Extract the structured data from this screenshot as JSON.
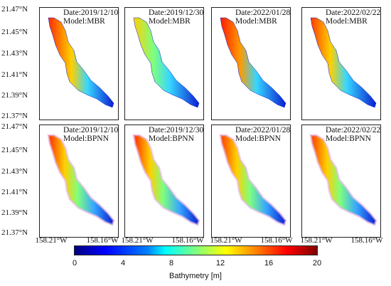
{
  "figure": {
    "y_ticks": [
      "21.47°N",
      "21.45°N",
      "21.43°N",
      "21.41°N",
      "21.39°N",
      "21.37°N"
    ],
    "x_ticks": [
      "158.21°W",
      "158.16°W"
    ],
    "panels": [
      {
        "date": "Date:2019/12/10",
        "model": "Model:MBR"
      },
      {
        "date": "Date:2019/12/30",
        "model": "Model:MBR"
      },
      {
        "date": "Date:2022/01/28",
        "model": "Model:MBR"
      },
      {
        "date": "Date:2022/02/22",
        "model": "Model:MBR"
      },
      {
        "date": "Date:2019/12/10",
        "model": "Model:BPNN"
      },
      {
        "date": "Date:2019/12/30",
        "model": "Model:BPNN"
      },
      {
        "date": "Date:2022/01/28",
        "model": "Model:BPNN"
      },
      {
        "date": "Date:2022/02/22",
        "model": "Model:BPNN"
      }
    ],
    "colorbar": {
      "ticks": [
        "0",
        "4",
        "8",
        "12",
        "16",
        "20"
      ],
      "label": "Bathymetry [m]",
      "colormap": [
        "#00007f",
        "#0000ff",
        "#007fff",
        "#00ffff",
        "#7fff7f",
        "#ffff00",
        "#ff7f00",
        "#ff0000",
        "#7f0000"
      ]
    }
  }
}
